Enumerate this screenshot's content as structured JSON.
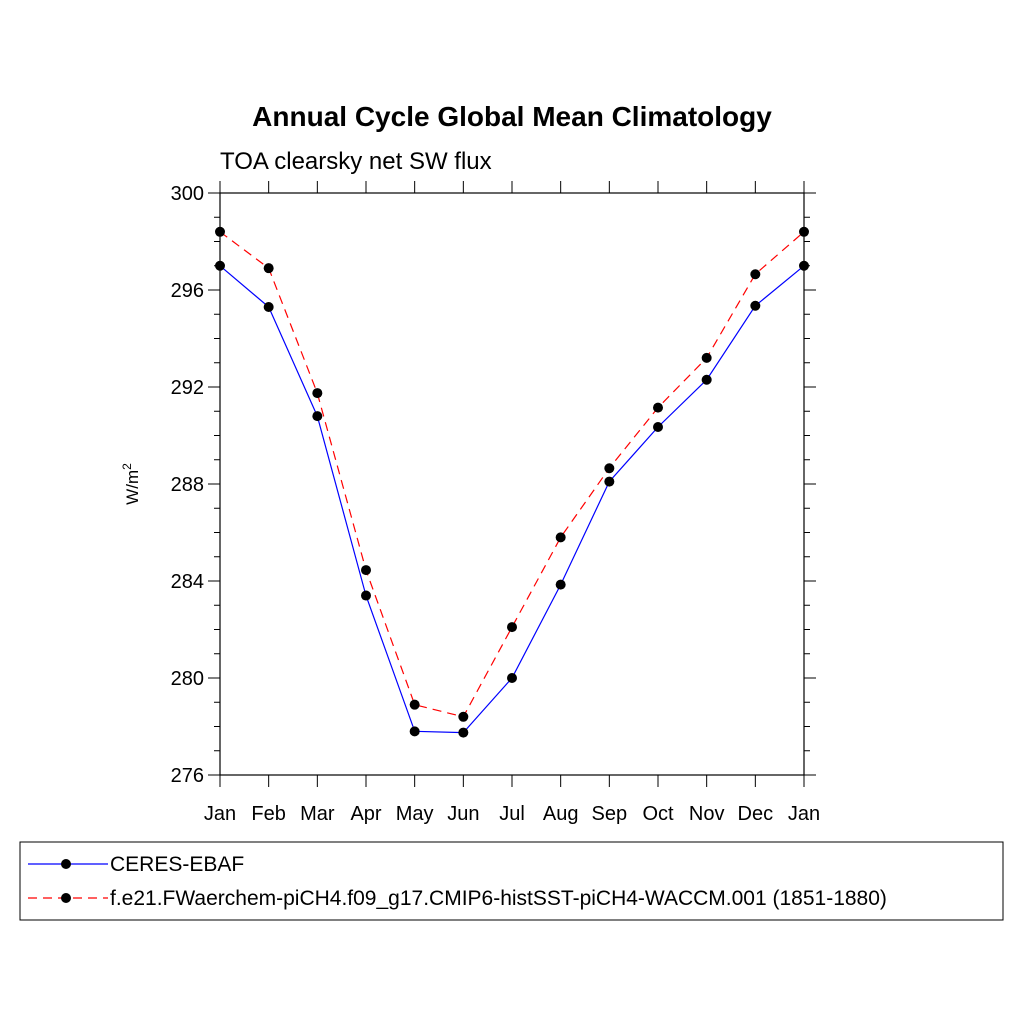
{
  "chart_data": {
    "type": "line",
    "title": "Annual Cycle Global Mean Climatology",
    "subtitle": "TOA clearsky net SW flux",
    "ylabel": "W/m",
    "ylabel_superscript": "2",
    "xlabel": "",
    "categories": [
      "Jan",
      "Feb",
      "Mar",
      "Apr",
      "May",
      "Jun",
      "Jul",
      "Aug",
      "Sep",
      "Oct",
      "Nov",
      "Dec",
      "Jan"
    ],
    "ylim": [
      276,
      300
    ],
    "yticks": [
      "276",
      "280",
      "284",
      "288",
      "292",
      "296",
      "300"
    ],
    "grid": false,
    "legend_position": "bottom",
    "series": [
      {
        "name": "CERES-EBAF",
        "color": "#0000ff",
        "dashed": false,
        "marker": "filled-circle",
        "values": [
          297.0,
          295.3,
          290.8,
          283.4,
          277.8,
          277.75,
          280.0,
          283.85,
          288.1,
          290.35,
          292.3,
          295.35,
          297.0
        ]
      },
      {
        "name": "f.e21.FWaerchem-piCH4.f09_g17.CMIP6-histSST-piCH4-WACCM.001 (1851-1880)",
        "color": "#ff0000",
        "dashed": true,
        "marker": "filled-circle",
        "values": [
          298.4,
          296.9,
          291.75,
          284.45,
          278.9,
          278.4,
          282.1,
          285.8,
          288.65,
          291.15,
          293.2,
          296.65,
          298.4
        ]
      }
    ]
  }
}
